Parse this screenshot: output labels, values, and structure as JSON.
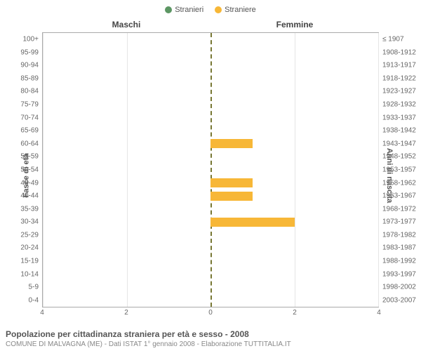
{
  "legend": {
    "male": {
      "label": "Stranieri",
      "color": "#5c9663"
    },
    "female": {
      "label": "Straniere",
      "color": "#f7b737"
    }
  },
  "section_titles": {
    "left": "Maschi",
    "right": "Femmine"
  },
  "y_axis_left_label": "Fasce di età",
  "y_axis_right_label": "Anni di nascita",
  "chart": {
    "type": "population-pyramid",
    "xlim": 4,
    "xticks_left": [
      4,
      2,
      0
    ],
    "xticks_right": [
      0,
      2,
      4
    ],
    "background_color": "#ffffff",
    "grid_color": "#e5e5e5",
    "center_line_color": "#777733",
    "bar_relative_height": 0.7,
    "rows": [
      {
        "age": "0-4",
        "birth": "2003-2007",
        "m": 0,
        "f": 0
      },
      {
        "age": "5-9",
        "birth": "1998-2002",
        "m": 0,
        "f": 0
      },
      {
        "age": "10-14",
        "birth": "1993-1997",
        "m": 0,
        "f": 0
      },
      {
        "age": "15-19",
        "birth": "1988-1992",
        "m": 0,
        "f": 0
      },
      {
        "age": "20-24",
        "birth": "1983-1987",
        "m": 0,
        "f": 0
      },
      {
        "age": "25-29",
        "birth": "1978-1982",
        "m": 0,
        "f": 0
      },
      {
        "age": "30-34",
        "birth": "1973-1977",
        "m": 0,
        "f": 2
      },
      {
        "age": "35-39",
        "birth": "1968-1972",
        "m": 0,
        "f": 0
      },
      {
        "age": "40-44",
        "birth": "1963-1967",
        "m": 0,
        "f": 1
      },
      {
        "age": "45-49",
        "birth": "1958-1962",
        "m": 0,
        "f": 1
      },
      {
        "age": "50-54",
        "birth": "1953-1957",
        "m": 0,
        "f": 0
      },
      {
        "age": "55-59",
        "birth": "1948-1952",
        "m": 0,
        "f": 0
      },
      {
        "age": "60-64",
        "birth": "1943-1947",
        "m": 0,
        "f": 1
      },
      {
        "age": "65-69",
        "birth": "1938-1942",
        "m": 0,
        "f": 0
      },
      {
        "age": "70-74",
        "birth": "1933-1937",
        "m": 0,
        "f": 0
      },
      {
        "age": "75-79",
        "birth": "1928-1932",
        "m": 0,
        "f": 0
      },
      {
        "age": "80-84",
        "birth": "1923-1927",
        "m": 0,
        "f": 0
      },
      {
        "age": "85-89",
        "birth": "1918-1922",
        "m": 0,
        "f": 0
      },
      {
        "age": "90-94",
        "birth": "1913-1917",
        "m": 0,
        "f": 0
      },
      {
        "age": "95-99",
        "birth": "1908-1912",
        "m": 0,
        "f": 0
      },
      {
        "age": "100+",
        "birth": "≤ 1907",
        "m": 0,
        "f": 0
      }
    ]
  },
  "footer": {
    "title": "Popolazione per cittadinanza straniera per età e sesso - 2008",
    "subtitle": "COMUNE DI MALVAGNA (ME) - Dati ISTAT 1° gennaio 2008 - Elaborazione TUTTITALIA.IT"
  }
}
